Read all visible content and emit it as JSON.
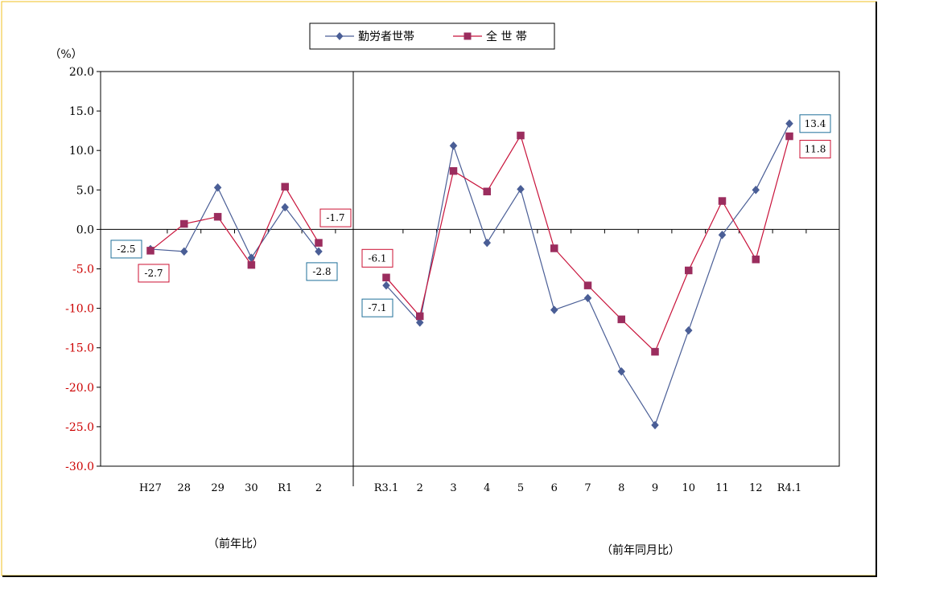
{
  "unit_label": "（%）",
  "legend": {
    "items": [
      "勤労者世帯",
      "全 世 帯"
    ]
  },
  "captions": {
    "left": "（前年比）",
    "right": "（前年同月比）"
  },
  "colors": {
    "series1": "#4a5e96",
    "series2": "#c8123a",
    "marker2": "#9b2d5e",
    "frame_border": "#f0c020",
    "neg_tick": "#cc0000"
  },
  "chart_data": {
    "type": "line",
    "ylim": [
      -30,
      20
    ],
    "y_ticks": [
      "20.0",
      "15.0",
      "10.0",
      "5.0",
      "0.0",
      "-5.0",
      "-10.0",
      "-15.0",
      "-20.0",
      "-25.0",
      "-30.0"
    ],
    "panels": [
      {
        "categories": [
          "H27",
          "28",
          "29",
          "30",
          "R1",
          "2"
        ],
        "series": [
          {
            "name": "勤労者世帯",
            "values": [
              -2.5,
              -2.8,
              5.3,
              -3.6,
              2.8,
              -2.8
            ]
          },
          {
            "name": "全 世 帯",
            "values": [
              -2.7,
              0.7,
              1.6,
              -4.5,
              5.4,
              -1.7
            ]
          }
        ]
      },
      {
        "categories": [
          "R3.1",
          "2",
          "3",
          "4",
          "5",
          "6",
          "7",
          "8",
          "9",
          "10",
          "11",
          "12",
          "R4.1"
        ],
        "series": [
          {
            "name": "勤労者世帯",
            "values": [
              -7.1,
              -11.8,
              10.6,
              -1.7,
              5.1,
              -10.2,
              -8.7,
              -18.0,
              -24.8,
              -12.8,
              -0.7,
              5.0,
              13.4
            ]
          },
          {
            "name": "全 世 帯",
            "values": [
              -6.1,
              -11.0,
              7.4,
              4.8,
              11.9,
              -2.4,
              -7.1,
              -11.4,
              -15.5,
              -5.2,
              3.6,
              -3.8,
              11.8
            ]
          }
        ]
      }
    ],
    "data_labels": [
      {
        "text": "-2.5",
        "series": 0,
        "panel": 0,
        "index": 0
      },
      {
        "text": "-2.7",
        "series": 1,
        "panel": 0,
        "index": 0
      },
      {
        "text": "-1.7",
        "series": 1,
        "panel": 0,
        "index": 5
      },
      {
        "text": "-2.8",
        "series": 0,
        "panel": 0,
        "index": 5
      },
      {
        "text": "-6.1",
        "series": 1,
        "panel": 1,
        "index": 0
      },
      {
        "text": "-7.1",
        "series": 0,
        "panel": 1,
        "index": 0
      },
      {
        "text": "13.4",
        "series": 0,
        "panel": 1,
        "index": 12
      },
      {
        "text": "11.8",
        "series": 1,
        "panel": 1,
        "index": 12
      }
    ],
    "grid": false,
    "legend_position": "top-center"
  }
}
